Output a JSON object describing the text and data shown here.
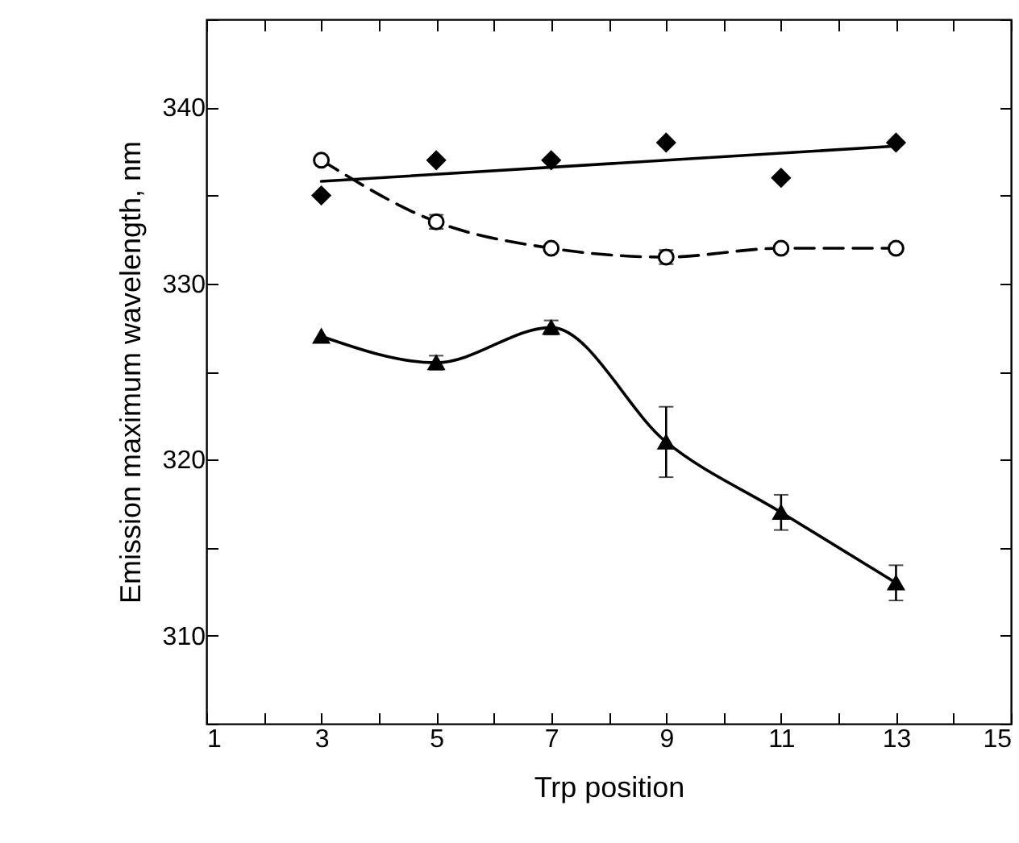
{
  "chart_data": {
    "type": "line",
    "xlabel": "Trp position",
    "ylabel": "Emission maximum wavelength, nm",
    "x": [
      3,
      5,
      7,
      9,
      11,
      13
    ],
    "xlim": [
      1,
      15
    ],
    "xticks": [
      1,
      {
        "value": 2,
        "label": null
      },
      3,
      {
        "value": 4,
        "label": null
      },
      5,
      {
        "value": 6,
        "label": null
      },
      7,
      {
        "value": 8,
        "label": null
      },
      9,
      {
        "value": 10,
        "label": null
      },
      11,
      {
        "value": 12,
        "label": null
      },
      13,
      {
        "value": 14,
        "label": null
      },
      15
    ],
    "ylim": [
      305,
      345
    ],
    "yticks": [
      {
        "value": 305,
        "label": null
      },
      310,
      {
        "value": 315,
        "label": null
      },
      320,
      {
        "value": 325,
        "label": null
      },
      330,
      {
        "value": 335,
        "label": null
      },
      340,
      {
        "value": 345,
        "label": null
      }
    ],
    "grid": false,
    "series": [
      {
        "type": "scatter",
        "color": "#000000",
        "marker": "diamond",
        "values": [
          335,
          337,
          337,
          338,
          336,
          338
        ]
      },
      {
        "color": "#000000",
        "marker": "none",
        "line_style": "solid",
        "x": [
          3,
          13
        ],
        "values": [
          335.8,
          337.8
        ]
      },
      {
        "color": "#000000",
        "marker": "circle",
        "line_style": "dashed",
        "values": [
          337,
          333.5,
          332,
          331.5,
          332,
          332
        ],
        "errors": [
          null,
          0.4,
          null,
          0.4,
          null,
          null
        ]
      },
      {
        "color": "#000000",
        "marker": "triangle",
        "line_style": "solid",
        "values": [
          327,
          325.5,
          327.5,
          321,
          317,
          313
        ],
        "errors": [
          null,
          0.4,
          0.4,
          2,
          1,
          1
        ]
      }
    ]
  }
}
